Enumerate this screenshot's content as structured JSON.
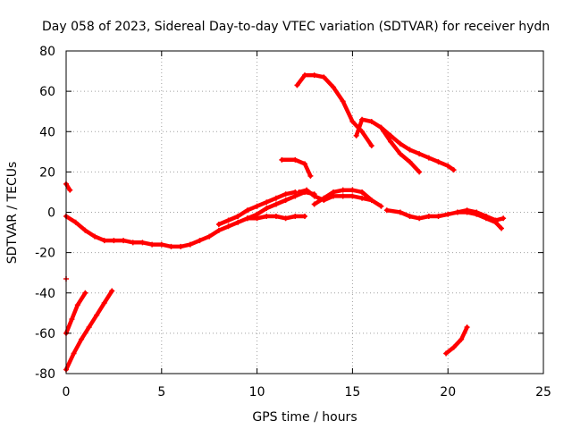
{
  "chart_data": {
    "type": "scatter",
    "title": "Day 058 of 2023, Sidereal Day-to-day VTEC variation (SDTVAR) for receiver hydn",
    "xlabel": "GPS time / hours",
    "ylabel": "SDTVAR / TECUs",
    "xlim": [
      0,
      25
    ],
    "ylim": [
      -80,
      80
    ],
    "xticks": [
      0,
      5,
      10,
      15,
      20,
      25
    ],
    "yticks": [
      -80,
      -60,
      -40,
      -20,
      0,
      20,
      40,
      60,
      80
    ],
    "xtick_labels": [
      "0",
      "5",
      "10",
      "15",
      "20",
      "25"
    ],
    "ytick_labels": [
      "-80",
      "-60",
      "-40",
      "-20",
      "0",
      "20",
      "40",
      "60",
      "80"
    ],
    "grid": true,
    "legend": "none",
    "series_color": "#ff0000",
    "series": [
      {
        "name": "arc-a",
        "x": [
          0.0,
          0.3,
          0.6,
          1.0
        ],
        "y": [
          -60,
          -53,
          -46,
          -40
        ]
      },
      {
        "name": "arc-b",
        "x": [
          0.0,
          0.4,
          0.8,
          1.2,
          1.6,
          2.0,
          2.4
        ],
        "y": [
          -78,
          -70,
          -63,
          -57,
          -51,
          -45,
          -39
        ]
      },
      {
        "name": "arc-c",
        "x": [
          0.0,
          0.2
        ],
        "y": [
          14,
          11
        ]
      },
      {
        "name": "arc-d",
        "x": [
          0.0
        ],
        "y": [
          -33
        ]
      },
      {
        "name": "arc-e",
        "x": [
          0.0,
          0.5,
          1.0,
          1.5,
          2.0,
          2.5,
          3.0,
          3.5,
          4.0,
          4.5,
          5.0,
          5.5,
          6.0,
          6.5,
          7.0,
          7.5,
          8.0,
          8.5,
          9.0,
          9.5,
          10.0,
          10.5,
          11.0,
          11.5,
          12.0,
          12.5,
          13.0
        ],
        "y": [
          -2,
          -5,
          -9,
          -12,
          -14,
          -14,
          -14,
          -15,
          -15,
          -16,
          -16,
          -17,
          -17,
          -16,
          -14,
          -12,
          -9,
          -7,
          -5,
          -3,
          -1,
          2,
          4,
          6,
          8,
          10,
          9
        ]
      },
      {
        "name": "arc-f",
        "x": [
          8.0,
          8.5,
          9.0,
          9.5,
          10.0,
          10.5,
          11.0,
          11.5,
          12.0
        ],
        "y": [
          -6,
          -4,
          -2,
          1,
          3,
          5,
          7,
          9,
          10
        ]
      },
      {
        "name": "arc-g",
        "x": [
          9.5,
          10.0,
          10.5,
          11.0,
          11.5,
          12.0,
          12.5
        ],
        "y": [
          -3,
          -3,
          -2,
          -2,
          -3,
          -2,
          -2
        ]
      },
      {
        "name": "arc-h",
        "x": [
          13.0,
          13.5,
          14.0,
          14.5,
          15.0,
          15.5,
          16.0,
          16.5
        ],
        "y": [
          4,
          7,
          10,
          11,
          11,
          10,
          6,
          3
        ]
      },
      {
        "name": "arc-i",
        "x": [
          12.2,
          12.6,
          13.0,
          13.5,
          14.0,
          14.5,
          15.0,
          15.5,
          16.0
        ],
        "y": [
          10,
          11,
          8,
          6,
          8,
          8,
          8,
          7,
          6
        ]
      },
      {
        "name": "arc-j",
        "x": [
          16.8,
          17.5,
          18.0,
          18.5,
          19.0,
          19.5,
          20.0,
          20.5,
          21.0,
          21.5,
          22.0,
          22.5,
          22.8
        ],
        "y": [
          1,
          0,
          -2,
          -3,
          -2,
          -2,
          -1,
          0,
          0,
          -1,
          -3,
          -5,
          -8
        ]
      },
      {
        "name": "arc-k",
        "x": [
          20.5,
          21.0,
          21.5,
          22.0,
          22.5,
          22.9
        ],
        "y": [
          0,
          1,
          0,
          -2,
          -4,
          -3
        ]
      },
      {
        "name": "arc-l",
        "x": [
          11.3,
          12.0,
          12.5,
          12.8
        ],
        "y": [
          26,
          26,
          24,
          18
        ]
      },
      {
        "name": "arc-m",
        "x": [
          12.1,
          12.5,
          13.0,
          13.5,
          14.0,
          14.5,
          15.0,
          15.5,
          16.0
        ],
        "y": [
          63,
          68,
          68,
          67,
          62,
          55,
          45,
          40,
          33
        ]
      },
      {
        "name": "arc-n",
        "x": [
          15.2,
          15.5,
          16.0,
          16.5,
          17.0,
          17.5,
          18.0,
          18.5
        ],
        "y": [
          38,
          46,
          45,
          42,
          35,
          29,
          25,
          20
        ]
      },
      {
        "name": "arc-o",
        "x": [
          16.5,
          17.0,
          17.5,
          18.0,
          18.5,
          19.0,
          19.5,
          20.0,
          20.3
        ],
        "y": [
          42,
          38,
          34,
          31,
          29,
          27,
          25,
          23,
          21
        ]
      },
      {
        "name": "arc-p",
        "x": [
          19.9,
          20.3,
          20.7,
          21.0
        ],
        "y": [
          -70,
          -67,
          -63,
          -57
        ]
      }
    ]
  }
}
